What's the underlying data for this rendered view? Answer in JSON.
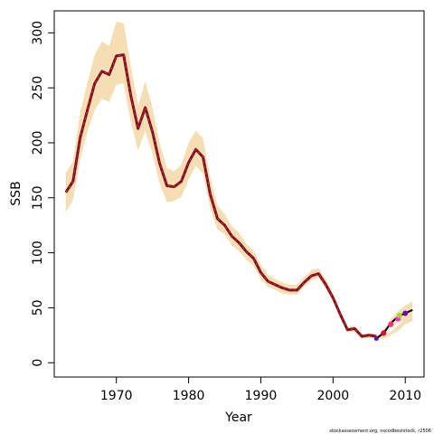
{
  "chart_data": {
    "type": "line",
    "xlabel": "Year",
    "ylabel": "SSB",
    "xlim": [
      1961.4,
      2012.6
    ],
    "ylim": [
      -13,
      320
    ],
    "x_ticks": [
      1970,
      1980,
      1990,
      2000,
      2010
    ],
    "y_ticks": [
      0,
      50,
      100,
      150,
      200,
      250,
      300
    ],
    "grid": false,
    "footnote": "stockassessment.org, nscodbeststock, r2506",
    "colors": {
      "band": "#f5deb3",
      "line": "#7b1020",
      "line_inner": "#ff3030",
      "forecast_line": "#000000",
      "points": [
        "#e8003a",
        "#ff3080",
        "#ff33cc",
        "#99dd33",
        "#6a0dad"
      ]
    },
    "series": [
      {
        "years": [
          1963,
          1964,
          1965,
          1966,
          1967,
          1968,
          1969,
          1970,
          1971,
          1972,
          1973,
          1974,
          1975,
          1976,
          1977,
          1978,
          1979,
          1980,
          1981,
          1982,
          1983,
          1984,
          1985,
          1986,
          1987,
          1988,
          1989,
          1990,
          1991,
          1992,
          1993,
          1994,
          1995,
          1996,
          1997,
          1998,
          1999,
          2000,
          2001,
          2002,
          2003,
          2004,
          2005,
          2006,
          2007,
          2008,
          2009,
          2010,
          2011
        ],
        "ssb": [
          155,
          165,
          205,
          230,
          254,
          265,
          262,
          279,
          280,
          243,
          213,
          232,
          210,
          181,
          161,
          160,
          165,
          182,
          194,
          187,
          153,
          131,
          125,
          115,
          109,
          101,
          95,
          82,
          74,
          71,
          68,
          66,
          66,
          73,
          79,
          81,
          71,
          59,
          44,
          30,
          31,
          24,
          25,
          24,
          23,
          26,
          31,
          37,
          40
        ],
        "lower": [
          137,
          148,
          185,
          210,
          230,
          240,
          237,
          253,
          254,
          219,
          193,
          211,
          190,
          163,
          146,
          147,
          151,
          167,
          179,
          172,
          140,
          121,
          117,
          107,
          101,
          94,
          88,
          76,
          69,
          66,
          63,
          62,
          62,
          69,
          75,
          77,
          67,
          56,
          41,
          28,
          28,
          22,
          23,
          22,
          22,
          25,
          29,
          35,
          38
        ],
        "upper": [
          173,
          183,
          228,
          255,
          280,
          292,
          288,
          310,
          309,
          270,
          234,
          256,
          232,
          200,
          177,
          174,
          180,
          200,
          211,
          204,
          168,
          143,
          135,
          124,
          118,
          108,
          102,
          89,
          80,
          76,
          73,
          71,
          71,
          78,
          84,
          86,
          76,
          63,
          47,
          32,
          34,
          26,
          27,
          26,
          25,
          28,
          34,
          40,
          42
        ]
      }
    ],
    "forecast": {
      "years": [
        2006,
        2007,
        2008,
        2009,
        2010,
        2011
      ],
      "ssb": [
        22,
        27,
        36,
        42,
        45,
        48
      ],
      "lower": [
        21,
        25,
        32,
        37,
        39,
        40
      ],
      "upper": [
        23,
        30,
        40,
        47,
        52,
        56
      ]
    },
    "points": [
      {
        "year": 2007,
        "ssb": 27
      },
      {
        "year": 2008,
        "ssb": 35
      },
      {
        "year": 2009,
        "ssb": 40
      },
      {
        "year": 2009.2,
        "ssb": 43
      },
      {
        "year": 2010,
        "ssb": 45
      }
    ],
    "end_point": {
      "year": 2006,
      "ssb": 22
    }
  }
}
